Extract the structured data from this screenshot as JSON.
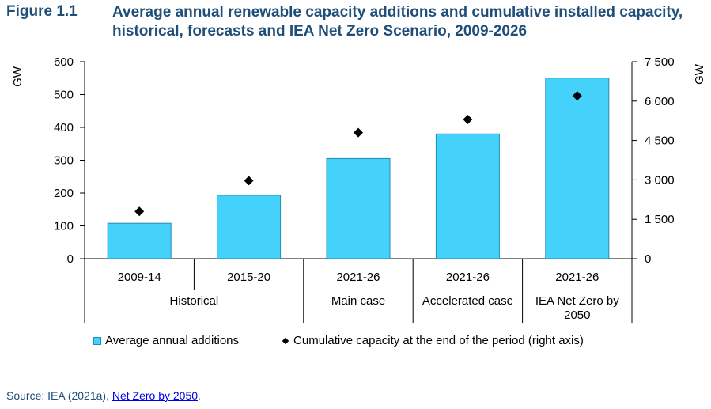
{
  "figure": {
    "number": "Figure 1.1",
    "title": "Average annual renewable capacity additions and cumulative installed capacity, historical, forecasts and IEA Net Zero Scenario, 2009-2026"
  },
  "source": {
    "prefix": "Source: IEA (2021a), ",
    "link": "Net Zero by 2050",
    "suffix": "."
  },
  "colors": {
    "bar": "#45d2fa",
    "bar_edge": "#1f8fb5",
    "marker": "#000000",
    "title": "#1f4e79"
  },
  "chart_data": {
    "type": "bar",
    "categories": [
      "2009-14",
      "2015-20",
      "2021-26",
      "2021-26",
      "2021-26"
    ],
    "groups": [
      "Historical",
      "Main case",
      "Accelerated case",
      "IEA Net Zero by 2050"
    ],
    "group_spans": [
      2,
      1,
      1,
      1
    ],
    "ylabel": "GW",
    "y2label": "GW",
    "ylim": [
      0,
      600
    ],
    "y2lim": [
      0,
      7500
    ],
    "yticks": [
      "0",
      "100",
      "200",
      "300",
      "400",
      "500",
      "600"
    ],
    "y2ticks": [
      "0",
      "1 500",
      "3 000",
      "4 500",
      "6 000",
      "7 500"
    ],
    "grid": false,
    "legend_position": "bottom",
    "series": [
      {
        "name": "Average annual additions",
        "type": "bar",
        "axis": "left",
        "values": [
          108,
          193,
          305,
          380,
          550
        ]
      },
      {
        "name": "Cumulative capacity at the end of the period (right axis)",
        "type": "scatter",
        "axis": "right",
        "marker": "diamond",
        "values": [
          1800,
          2970,
          4800,
          5300,
          6200
        ]
      }
    ]
  }
}
